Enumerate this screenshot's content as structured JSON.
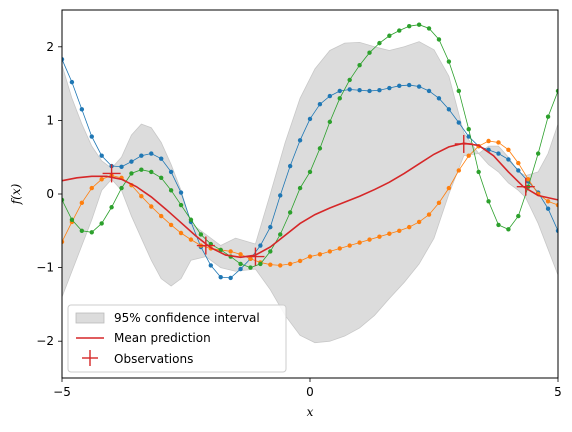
{
  "chart_data": {
    "type": "line",
    "xlabel": "x",
    "ylabel": "f(x)",
    "xlim": [
      -5,
      5
    ],
    "ylim": [
      -2.5,
      2.5
    ],
    "xticks": [
      -5,
      0,
      5
    ],
    "yticks": [
      -2,
      -1,
      0,
      1,
      2
    ],
    "grid": false,
    "legend": {
      "position": "lower-left",
      "entries": [
        "95% confidence interval",
        "Mean prediction",
        "Observations"
      ]
    },
    "colors": {
      "band": "#dcdcdc",
      "mean": "#d62728",
      "sample1": "#1f77b4",
      "sample2": "#ff7f0e",
      "sample3": "#2ca02c",
      "observation": "#d62728"
    },
    "observations": {
      "x": [
        -4.0,
        -2.1,
        -1.1,
        3.1,
        4.35
      ],
      "y": [
        0.28,
        -0.7,
        -0.85,
        0.68,
        0.1
      ]
    },
    "mean": {
      "x": [
        -5,
        -4.7,
        -4.4,
        -4.1,
        -3.8,
        -3.5,
        -3.2,
        -2.9,
        -2.6,
        -2.3,
        -2.0,
        -1.7,
        -1.4,
        -1.1,
        -0.8,
        -0.5,
        -0.2,
        0.1,
        0.4,
        0.7,
        1.0,
        1.3,
        1.6,
        1.9,
        2.2,
        2.5,
        2.8,
        3.1,
        3.4,
        3.7,
        4.0,
        4.3,
        4.6,
        5.0
      ],
      "y": [
        0.18,
        0.22,
        0.24,
        0.24,
        0.2,
        0.1,
        -0.04,
        -0.21,
        -0.39,
        -0.57,
        -0.73,
        -0.83,
        -0.86,
        -0.83,
        -0.72,
        -0.56,
        -0.4,
        -0.28,
        -0.19,
        -0.11,
        -0.03,
        0.06,
        0.16,
        0.28,
        0.41,
        0.54,
        0.64,
        0.69,
        0.66,
        0.52,
        0.3,
        0.1,
        -0.02,
        -0.08
      ]
    },
    "confidence_interval": {
      "x": [
        -5,
        -4.8,
        -4.6,
        -4.4,
        -4.2,
        -4.0,
        -3.8,
        -3.6,
        -3.4,
        -3.2,
        -3.0,
        -2.8,
        -2.6,
        -2.4,
        -2.1,
        -1.8,
        -1.5,
        -1.1,
        -0.8,
        -0.5,
        -0.2,
        0.1,
        0.4,
        0.7,
        1.0,
        1.3,
        1.6,
        1.9,
        2.2,
        2.5,
        2.8,
        3.1,
        3.4,
        3.6,
        3.8,
        4.0,
        4.2,
        4.35,
        4.6,
        4.8,
        5.0
      ],
      "upper": [
        1.75,
        1.3,
        0.95,
        0.65,
        0.45,
        0.35,
        0.5,
        0.8,
        0.95,
        0.9,
        0.7,
        0.4,
        0.05,
        -0.4,
        -0.55,
        -0.7,
        -0.6,
        -0.68,
        0.0,
        0.7,
        1.3,
        1.7,
        1.95,
        2.05,
        2.06,
        2.0,
        1.95,
        2.0,
        2.07,
        1.96,
        1.6,
        0.83,
        0.55,
        0.65,
        0.65,
        0.5,
        0.3,
        0.25,
        0.3,
        0.55,
        0.95
      ],
      "lower": [
        -1.4,
        -1.05,
        -0.7,
        -0.35,
        0.05,
        0.2,
        0.05,
        -0.3,
        -0.6,
        -0.9,
        -1.15,
        -1.25,
        -1.15,
        -0.9,
        -0.85,
        -1.0,
        -1.05,
        -1.02,
        -1.3,
        -1.65,
        -1.92,
        -2.02,
        -2.0,
        -1.93,
        -1.82,
        -1.65,
        -1.42,
        -1.2,
        -0.95,
        -0.6,
        0.0,
        0.52,
        0.55,
        0.4,
        0.3,
        0.15,
        0.05,
        -0.05,
        -0.4,
        -0.75,
        -1.1
      ]
    },
    "series": [
      {
        "x": [
          -5.0,
          -4.8,
          -4.6,
          -4.4,
          -4.2,
          -4.0,
          -3.8,
          -3.6,
          -3.4,
          -3.2,
          -3.0,
          -2.8,
          -2.6,
          -2.4,
          -2.2,
          -2.0,
          -1.8,
          -1.6,
          -1.4,
          -1.2,
          -1.0,
          -0.8,
          -0.6,
          -0.4,
          -0.2,
          0.0,
          0.2,
          0.4,
          0.6,
          0.8,
          1.0,
          1.2,
          1.4,
          1.6,
          1.8,
          2.0,
          2.2,
          2.4,
          2.6,
          2.8,
          3.0,
          3.2,
          3.4,
          3.6,
          3.8,
          4.0,
          4.2,
          4.4,
          4.6,
          4.8,
          5.0
        ],
        "y": [
          1.83,
          1.52,
          1.15,
          0.78,
          0.52,
          0.38,
          0.37,
          0.44,
          0.52,
          0.55,
          0.48,
          0.3,
          0.02,
          -0.38,
          -0.72,
          -0.97,
          -1.13,
          -1.14,
          -1.02,
          -0.88,
          -0.7,
          -0.45,
          -0.02,
          0.38,
          0.73,
          1.02,
          1.22,
          1.33,
          1.4,
          1.42,
          1.41,
          1.4,
          1.41,
          1.44,
          1.47,
          1.48,
          1.46,
          1.4,
          1.3,
          1.15,
          0.97,
          0.78,
          0.65,
          0.6,
          0.55,
          0.47,
          0.32,
          0.17,
          0.02,
          -0.2,
          -0.5
        ]
      },
      {
        "x": [
          -5.0,
          -4.8,
          -4.6,
          -4.4,
          -4.2,
          -4.0,
          -3.8,
          -3.6,
          -3.4,
          -3.2,
          -3.0,
          -2.8,
          -2.6,
          -2.4,
          -2.2,
          -2.0,
          -1.8,
          -1.6,
          -1.4,
          -1.2,
          -1.0,
          -0.8,
          -0.6,
          -0.4,
          -0.2,
          0.0,
          0.2,
          0.4,
          0.6,
          0.8,
          1.0,
          1.2,
          1.4,
          1.6,
          1.8,
          2.0,
          2.2,
          2.4,
          2.6,
          2.8,
          3.0,
          3.2,
          3.4,
          3.6,
          3.8,
          4.0,
          4.2,
          4.4,
          4.6,
          4.8,
          5.0
        ],
        "y": [
          -0.65,
          -0.38,
          -0.12,
          0.08,
          0.2,
          0.25,
          0.22,
          0.12,
          -0.03,
          -0.17,
          -0.3,
          -0.42,
          -0.53,
          -0.62,
          -0.7,
          -0.74,
          -0.76,
          -0.78,
          -0.82,
          -0.88,
          -0.93,
          -0.96,
          -0.97,
          -0.95,
          -0.91,
          -0.85,
          -0.82,
          -0.78,
          -0.74,
          -0.7,
          -0.66,
          -0.62,
          -0.58,
          -0.54,
          -0.5,
          -0.45,
          -0.38,
          -0.28,
          -0.12,
          0.08,
          0.32,
          0.52,
          0.65,
          0.72,
          0.7,
          0.6,
          0.42,
          0.2,
          0.0,
          -0.1,
          -0.15
        ]
      },
      {
        "x": [
          -5.0,
          -4.8,
          -4.6,
          -4.4,
          -4.2,
          -4.0,
          -3.8,
          -3.6,
          -3.4,
          -3.2,
          -3.0,
          -2.8,
          -2.6,
          -2.4,
          -2.2,
          -2.0,
          -1.8,
          -1.6,
          -1.4,
          -1.2,
          -1.0,
          -0.8,
          -0.6,
          -0.4,
          -0.2,
          0.0,
          0.2,
          0.4,
          0.6,
          0.8,
          1.0,
          1.2,
          1.4,
          1.6,
          1.8,
          2.0,
          2.2,
          2.4,
          2.6,
          2.8,
          3.0,
          3.2,
          3.4,
          3.6,
          3.8,
          4.0,
          4.2,
          4.4,
          4.6,
          4.8,
          5.0
        ],
        "y": [
          -0.08,
          -0.35,
          -0.5,
          -0.52,
          -0.4,
          -0.18,
          0.08,
          0.28,
          0.33,
          0.3,
          0.22,
          0.05,
          -0.15,
          -0.35,
          -0.55,
          -0.68,
          -0.76,
          -0.85,
          -0.95,
          -1.0,
          -0.95,
          -0.78,
          -0.55,
          -0.25,
          0.08,
          0.3,
          0.62,
          0.98,
          1.3,
          1.55,
          1.75,
          1.92,
          2.05,
          2.15,
          2.22,
          2.28,
          2.3,
          2.25,
          2.1,
          1.8,
          1.4,
          0.88,
          0.3,
          -0.1,
          -0.42,
          -0.48,
          -0.3,
          0.1,
          0.55,
          1.05,
          1.4
        ]
      }
    ]
  }
}
